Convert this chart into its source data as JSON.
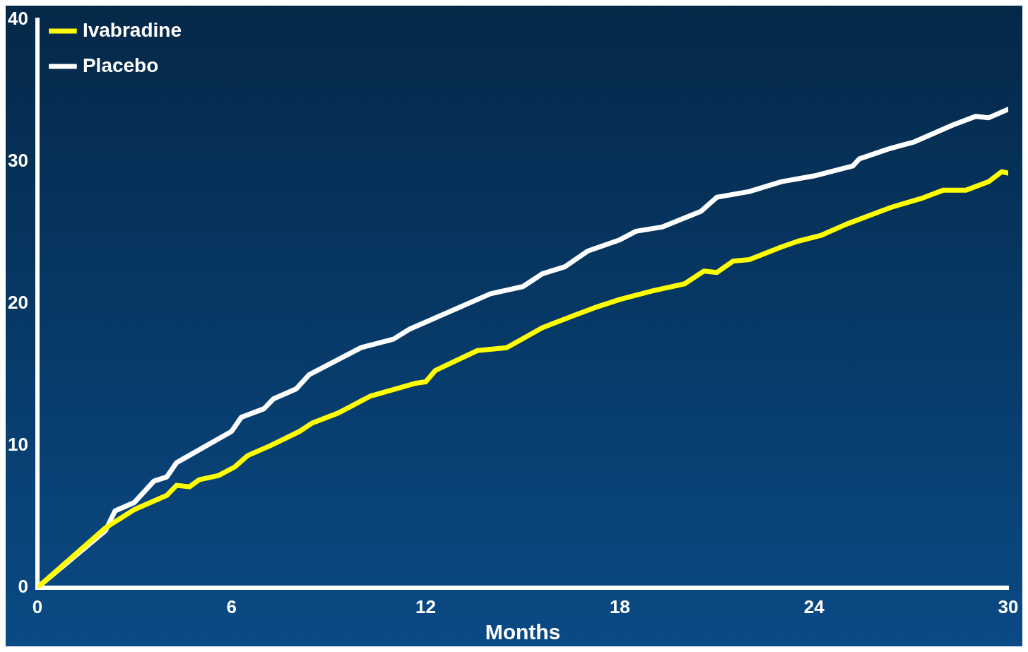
{
  "chart_data": {
    "type": "line",
    "xlabel": "Months",
    "xlim": [
      0,
      30
    ],
    "xticks": [
      0,
      6,
      12,
      18,
      24,
      30
    ],
    "ylim": [
      0,
      40
    ],
    "yticks": [
      0,
      10,
      20,
      30,
      40
    ],
    "grid": false,
    "legend": "top left",
    "marker": "none",
    "line_style": "solid",
    "series": [
      {
        "name": "Ivabradine",
        "color": "#ffff00",
        "x": [
          0,
          2.1,
          3,
          4,
          4.3,
          4.7,
          5,
          5.6,
          6.1,
          6.5,
          7.2,
          8.1,
          8.5,
          9.3,
          10.3,
          11.7,
          12,
          12.3,
          13.6,
          14.5,
          15.6,
          16.5,
          17.2,
          18,
          19,
          20,
          20.6,
          21,
          21.5,
          22,
          23,
          23.5,
          24.2,
          25,
          25.7,
          26.4,
          27.3,
          28,
          28.7,
          29.4,
          29.8,
          30
        ],
        "values": [
          0,
          4.2,
          5.5,
          6.5,
          7.2,
          7.1,
          7.6,
          7.9,
          8.5,
          9.3,
          10,
          11,
          11.6,
          12.3,
          13.5,
          14.4,
          14.5,
          15.3,
          16.7,
          16.9,
          18.3,
          19.1,
          19.7,
          20.3,
          20.9,
          21.4,
          22.3,
          22.2,
          23,
          23.1,
          24,
          24.4,
          24.8,
          25.6,
          26.2,
          26.8,
          27.4,
          28,
          28,
          28.6,
          29.3,
          29.2
        ]
      },
      {
        "name": "Placebo",
        "color": "#ffffff",
        "x": [
          0,
          2.1,
          2.4,
          3,
          3.6,
          4,
          4.3,
          6,
          6.3,
          7,
          7.3,
          8,
          8.4,
          10,
          11,
          11.5,
          14,
          15,
          15.6,
          16.3,
          17,
          18,
          18.5,
          19.3,
          20.5,
          21,
          22,
          23,
          24,
          25.2,
          25.4,
          26.3,
          27.1,
          28.3,
          29,
          29.4,
          30
        ],
        "values": [
          0,
          4,
          5.4,
          6,
          7.5,
          7.8,
          8.8,
          11,
          12,
          12.6,
          13.3,
          14,
          15,
          16.9,
          17.5,
          18.2,
          20.7,
          21.2,
          22.1,
          22.6,
          23.7,
          24.5,
          25.1,
          25.4,
          26.5,
          27.5,
          27.9,
          28.6,
          29,
          29.7,
          30.2,
          30.9,
          31.4,
          32.6,
          33.2,
          33.1,
          33.7
        ]
      }
    ]
  }
}
